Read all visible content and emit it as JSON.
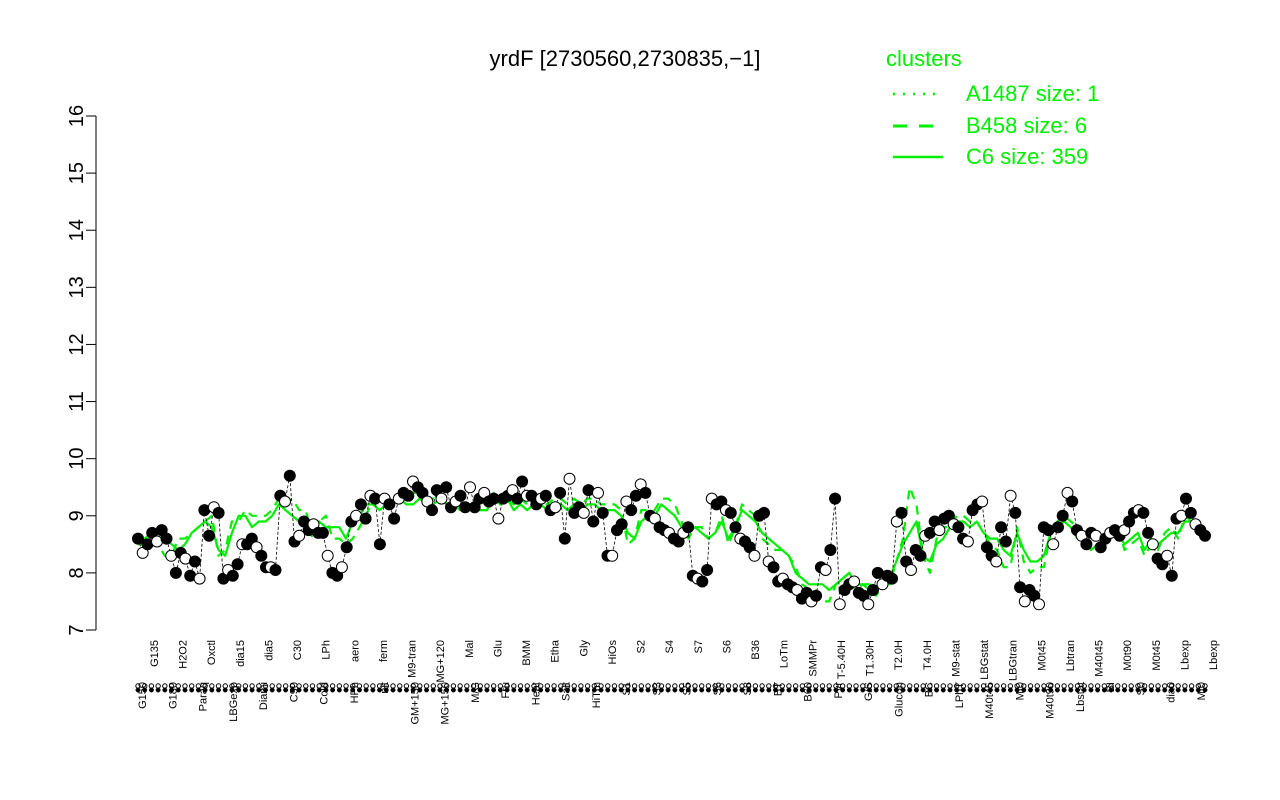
{
  "chart_data": {
    "type": "line",
    "title": "yrdF [2730560,2730835,−1]",
    "ylim": [
      7,
      16
    ],
    "yticks": [
      7,
      8,
      9,
      10,
      11,
      12,
      13,
      14,
      15,
      16
    ],
    "xlabel": "",
    "ylabel": "",
    "legend": {
      "title": "clusters",
      "placement": "top-right",
      "color": "#00ee00",
      "entries": [
        {
          "label": "A1487 size: 1",
          "style": "dotted"
        },
        {
          "label": "B458 size: 6",
          "style": "dashed"
        },
        {
          "label": "C6 size: 359",
          "style": "solid"
        }
      ]
    },
    "x_tick_labels": [
      {
        "row": 0,
        "labels": [
          "G150",
          "G180",
          "Paraq",
          "LBGexp",
          "Diami",
          "C90",
          "Cold",
          "HPh",
          "nit",
          "GM+150",
          "MG+150",
          "M/G",
          "Fru",
          "Heat",
          "Salt",
          "HiTm",
          "S1",
          "S3",
          "S5",
          "S6",
          "S8",
          "BT",
          "B60",
          "Pyr",
          "G/S",
          "Glucon",
          "BC",
          "LPhT",
          "M40t45",
          "Mt0",
          "M40t90",
          "Lbstat",
          "BI",
          "S0",
          "dia0",
          "Mt0"
        ]
      },
      {
        "row": 1,
        "labels": [
          "G135",
          "H2O2",
          "Oxctl",
          "dia15",
          "dia5",
          "C30",
          "LPh",
          "aero",
          "ferm",
          "M9-tran",
          "MG+120",
          "Mal",
          "Glu",
          "BMM",
          "Etha",
          "Gly",
          "HiOs",
          "S2",
          "S4",
          "S7",
          "S6",
          "B36",
          "LoTm",
          "SMMPr",
          "T-5.40H",
          "T1.30H",
          "T2.0H",
          "T4.0H",
          "M9-stat",
          "LBGstat",
          "LBGtran",
          "M0t45",
          "Lbtran",
          "M40t45",
          "M0t90",
          "M0t45",
          "Lbexp",
          "Lbexp"
        ]
      }
    ],
    "series": [
      {
        "name": "C6",
        "style": "solid",
        "color": "#00ee00",
        "values": [
          8.5,
          8.6,
          8.7,
          8.7,
          8.6,
          8.5,
          8.4,
          8.5,
          8.7,
          8.8,
          8.9,
          8.8,
          8.4,
          8.3,
          8.7,
          9.0,
          9.0,
          8.8,
          8.9,
          8.9,
          9.0,
          9.2,
          9.1,
          9.0,
          8.9,
          8.9,
          8.7,
          8.9,
          8.8,
          8.8,
          8.8,
          8.6,
          8.9,
          9.0,
          9.2,
          9.2,
          9.1,
          9.2,
          9.2,
          9.3,
          9.2,
          9.2,
          9.3,
          9.2,
          9.2,
          9.3,
          9.2,
          9.2,
          9.1,
          9.2,
          9.1,
          9.1,
          9.1,
          9.3,
          9.2,
          9.3,
          9.1,
          9.2,
          9.1,
          9.2,
          9.2,
          9.1,
          9.2,
          9.2,
          9.1,
          9.2,
          9.1,
          9.2,
          9.2,
          9.1,
          9.1,
          9.1,
          9.0,
          8.7,
          8.6,
          8.9,
          9.0,
          9.0,
          9.2,
          9.1,
          9.0,
          8.8,
          8.7,
          8.8,
          8.7,
          8.6,
          8.7,
          8.9,
          8.6,
          8.8,
          9.1,
          9.0,
          8.9,
          8.7,
          8.6,
          8.5,
          8.4,
          8.3,
          8.0,
          7.9,
          7.8,
          7.8,
          7.8,
          7.7,
          7.8,
          7.9,
          8.0,
          7.8,
          7.8,
          7.8,
          7.7,
          7.8,
          7.9,
          8.2,
          8.5,
          8.7,
          8.9,
          8.3,
          8.2,
          8.5,
          8.6,
          8.8,
          8.9,
          8.9,
          8.8,
          8.9,
          8.7,
          8.6,
          8.6,
          8.4,
          8.3,
          8.7,
          8.4,
          8.2,
          8.2,
          8.3,
          8.7,
          8.8,
          8.9,
          8.8,
          8.6,
          8.6,
          8.4,
          8.5,
          8.6,
          8.7,
          8.7,
          8.5,
          8.6,
          8.7,
          8.4,
          8.6,
          8.5,
          8.6,
          8.7,
          8.7,
          8.9,
          8.9,
          8.8,
          8.8
        ]
      },
      {
        "name": "B458",
        "style": "dashed",
        "color": "#00ee00",
        "values": [
          8.5,
          8.5,
          8.6,
          8.5,
          8.3,
          8.3,
          8.6,
          8.6,
          8.7,
          8.8,
          8.9,
          9.0,
          8.3,
          8.4,
          8.9,
          8.9,
          9.1,
          9.0,
          9.0,
          9.0,
          9.1,
          9.3,
          9.2,
          9.3,
          9.1,
          9.1,
          8.6,
          8.9,
          9.0,
          8.6,
          8.6,
          8.5,
          8.6,
          8.8,
          9.0,
          9.3,
          9.2,
          9.2,
          9.3,
          9.3,
          9.3,
          9.4,
          9.4,
          9.3,
          9.3,
          9.3,
          9.2,
          9.3,
          9.2,
          9.2,
          9.2,
          9.1,
          9.1,
          9.4,
          9.2,
          9.3,
          9.2,
          9.3,
          9.2,
          9.3,
          9.2,
          9.2,
          9.3,
          9.3,
          9.2,
          9.3,
          9.2,
          9.3,
          9.3,
          9.2,
          9.2,
          9.2,
          9.1,
          8.5,
          8.6,
          9.1,
          9.1,
          9.1,
          9.3,
          9.3,
          9.2,
          8.9,
          8.6,
          8.8,
          8.8,
          8.6,
          8.7,
          9.0,
          8.5,
          8.8,
          9.2,
          9.1,
          9.0,
          8.6,
          8.5,
          8.4,
          8.4,
          8.3,
          8.1,
          7.8,
          7.7,
          7.7,
          7.5,
          7.5,
          7.8,
          7.9,
          8.0,
          7.7,
          7.8,
          7.7,
          7.6,
          7.8,
          7.8,
          8.2,
          8.6,
          9.5,
          9.2,
          8.3,
          8.0,
          8.6,
          8.8,
          8.8,
          9.0,
          9.0,
          8.9,
          8.9,
          8.7,
          8.5,
          8.4,
          8.1,
          8.1,
          8.8,
          8.2,
          8.0,
          8.1,
          8.1,
          8.7,
          8.9,
          9.0,
          8.9,
          8.8,
          8.6,
          8.4,
          8.4,
          8.6,
          8.7,
          8.8,
          8.4,
          8.5,
          8.6,
          8.3,
          8.5,
          8.4,
          8.7,
          8.8,
          8.6,
          9.0,
          8.9,
          8.8,
          8.7
        ]
      }
    ],
    "points": [
      8.6,
      8.35,
      8.5,
      8.7,
      8.55,
      8.75,
      8.6,
      8.3,
      8.0,
      8.35,
      8.25,
      7.95,
      8.2,
      7.9,
      9.1,
      8.65,
      9.15,
      9.05,
      7.9,
      8.05,
      7.95,
      8.15,
      8.5,
      8.5,
      8.6,
      8.45,
      8.3,
      8.1,
      8.1,
      8.05,
      9.35,
      9.25,
      9.7,
      8.55,
      8.65,
      8.9,
      8.75,
      8.85,
      8.7,
      8.7,
      8.3,
      8.0,
      7.95,
      8.1,
      8.45,
      8.9,
      9.0,
      9.2,
      8.95,
      9.35,
      9.3,
      8.5,
      9.3,
      9.2,
      8.95,
      9.3,
      9.4,
      9.35,
      9.6,
      9.5,
      9.4,
      9.25,
      9.1,
      9.45,
      9.3,
      9.5,
      9.15,
      9.25,
      9.35,
      9.15,
      9.5,
      9.15,
      9.3,
      9.4,
      9.25,
      9.3,
      8.95,
      9.3,
      9.35,
      9.45,
      9.3,
      9.6,
      9.35,
      9.35,
      9.2,
      9.3,
      9.35,
      9.1,
      9.15,
      9.4,
      8.6,
      9.65,
      9.05,
      9.15,
      9.05,
      9.45,
      8.9,
      9.4,
      9.05,
      8.3,
      8.3,
      8.75,
      8.85,
      9.25,
      9.1,
      9.35,
      9.55,
      9.4,
      9.0,
      8.95,
      8.8,
      8.75,
      8.7,
      8.6,
      8.55,
      8.7,
      8.8,
      7.95,
      7.9,
      7.85,
      8.05,
      9.3,
      9.2,
      9.25,
      9.1,
      9.05,
      8.8,
      8.6,
      8.55,
      8.45,
      8.3,
      9.0,
      9.05,
      8.2,
      8.1,
      7.85,
      7.9,
      7.8,
      7.75,
      7.7,
      7.55,
      7.65,
      7.5,
      7.6,
      8.1,
      8.05,
      8.4,
      9.3,
      7.45,
      7.7,
      7.8,
      7.85,
      7.65,
      7.6,
      7.45,
      7.7,
      8.0,
      7.8,
      7.95,
      7.9,
      8.9,
      9.05,
      8.2,
      8.05,
      8.4,
      8.3,
      8.65,
      8.7,
      8.9,
      8.75,
      8.95,
      9.0,
      8.85,
      8.8,
      8.6,
      8.55,
      9.1,
      9.2,
      9.25,
      8.45,
      8.3,
      8.2,
      8.8,
      8.55,
      9.35,
      9.05,
      7.75,
      7.5,
      7.7,
      7.6,
      7.45,
      8.8,
      8.75,
      8.5,
      8.8,
      9.0,
      9.4,
      9.25,
      8.75,
      8.65,
      8.5,
      8.7,
      8.65,
      8.45,
      8.6,
      8.7,
      8.75,
      8.65,
      8.75,
      8.9,
      9.05,
      9.1,
      9.05,
      8.7,
      8.5,
      8.25,
      8.15,
      8.3,
      7.95,
      8.95,
      9.0,
      9.3,
      9.05,
      8.85,
      8.75,
      8.65
    ]
  }
}
